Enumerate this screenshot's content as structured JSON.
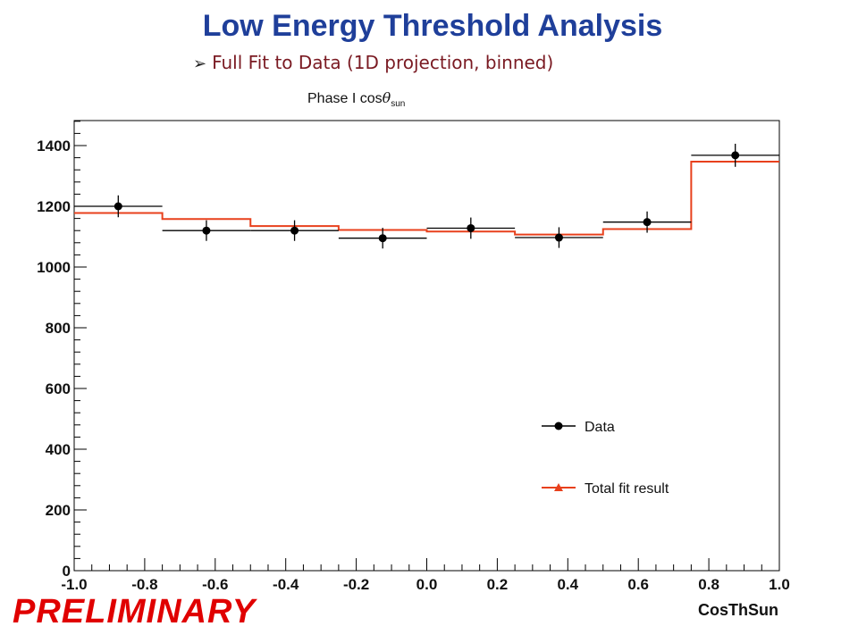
{
  "slide": {
    "title": "Low Energy Threshold Analysis",
    "bullet_text": "Full Fit to Data (1D projection, binned)",
    "subtitle_main": "Phase I cos",
    "subtitle_symbol": "θ",
    "subtitle_sub": "sun",
    "watermark": "PRELIMINARY"
  },
  "colors": {
    "title": "#1f3f9a",
    "bullet": "#7a1a22",
    "data": "#000000",
    "fit": "#e8401c",
    "watermark": "#e00000"
  },
  "chart_data": {
    "type": "line",
    "xlabel": "CosThSun",
    "ylabel": "",
    "xlim": [
      -1.0,
      1.0
    ],
    "ylim": [
      0,
      1500
    ],
    "x_ticks": [
      "-1.0",
      "-0.8",
      "-0.6",
      "-0.4",
      "-0.2",
      "0.0",
      "0.2",
      "0.4",
      "0.6",
      "0.8",
      "1.0"
    ],
    "y_ticks": [
      "0",
      "200",
      "400",
      "600",
      "800",
      "1000",
      "1200",
      "1400"
    ],
    "bin_edges": [
      -1.0,
      -0.75,
      -0.5,
      -0.25,
      0.0,
      0.25,
      0.5,
      0.75,
      1.0
    ],
    "series": [
      {
        "name": "Data",
        "kind": "points",
        "x": [
          -0.875,
          -0.625,
          -0.375,
          -0.125,
          0.125,
          0.375,
          0.625,
          0.875
        ],
        "values": [
          1200,
          1120,
          1120,
          1095,
          1128,
          1097,
          1148,
          1368
        ],
        "errors": [
          36,
          34,
          34,
          34,
          35,
          34,
          35,
          38
        ]
      },
      {
        "name": "Total fit result",
        "kind": "step",
        "values": [
          1178,
          1158,
          1135,
          1122,
          1117,
          1107,
          1125,
          1347
        ]
      }
    ],
    "legend_position": "lower-right",
    "grid": false
  }
}
